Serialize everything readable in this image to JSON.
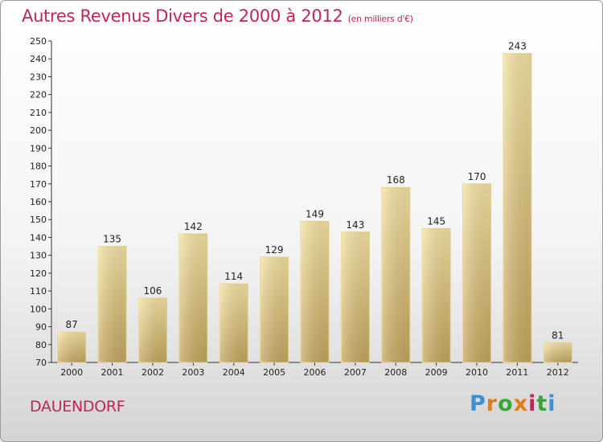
{
  "header": {
    "title": "Autres Revenus Divers de 2000 à 2012",
    "subtitle": "(en milliers d'€)"
  },
  "footer": {
    "location": "DAUENDORF",
    "logo_letters": [
      "P",
      "r",
      "o",
      "x",
      "i",
      "t",
      "i"
    ]
  },
  "chart_data": {
    "type": "bar",
    "title": "Autres Revenus Divers de 2000 à 2012",
    "subtitle": "(en milliers d'€)",
    "xlabel": "",
    "ylabel": "",
    "categories": [
      "2000",
      "2001",
      "2002",
      "2003",
      "2004",
      "2005",
      "2006",
      "2007",
      "2008",
      "2009",
      "2010",
      "2011",
      "2012"
    ],
    "values": [
      87,
      135,
      106,
      142,
      114,
      129,
      149,
      143,
      168,
      145,
      170,
      243,
      81
    ],
    "ylim": [
      70,
      250
    ],
    "yticks": [
      70,
      80,
      90,
      100,
      110,
      120,
      130,
      140,
      150,
      160,
      170,
      180,
      190,
      200,
      210,
      220,
      230,
      240,
      250
    ],
    "grid": false,
    "bar_color_light": "#f3dd98",
    "bar_color_dark": "#c8aa62",
    "data_labels": true
  }
}
